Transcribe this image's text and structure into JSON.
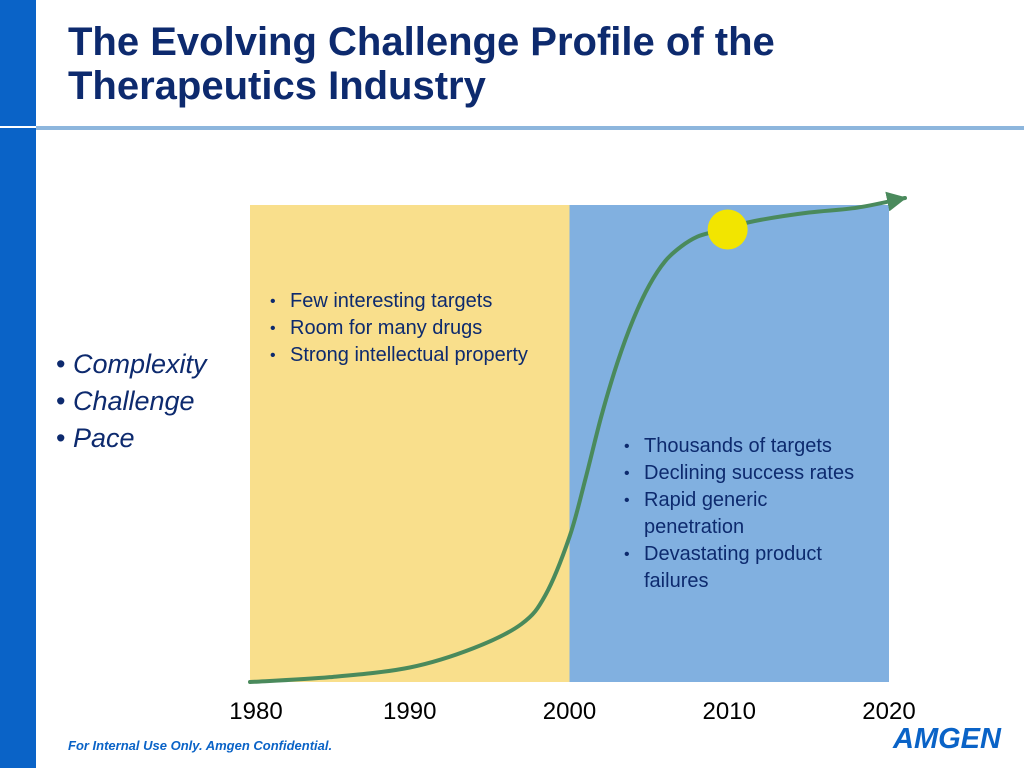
{
  "slide": {
    "title": "The Evolving Challenge Profile of the Therapeutics Industry",
    "keywords": [
      "Complexity",
      "Challenge",
      "Pace"
    ],
    "footer": "For Internal Use Only. Amgen Confidential.",
    "logo_text": "AMGEN"
  },
  "chart_data": {
    "type": "line",
    "title": "",
    "xlabel": "",
    "ylabel": "",
    "x_ticks": [
      1980,
      1990,
      2000,
      2010,
      2020
    ],
    "xlim": [
      1980,
      2020
    ],
    "series": [
      {
        "x": [
          1980,
          1985,
          1990,
          1994,
          1997,
          1998.5,
          2000,
          2001,
          2002,
          2003,
          2004,
          2005,
          2006,
          2007,
          2008,
          2009,
          2010,
          2012,
          2015,
          2018,
          2021
        ],
        "y": [
          0.0,
          0.01,
          0.03,
          0.07,
          0.12,
          0.18,
          0.3,
          0.42,
          0.55,
          0.66,
          0.75,
          0.82,
          0.87,
          0.9,
          0.92,
          0.93,
          0.94,
          0.955,
          0.97,
          0.98,
          1.0
        ],
        "color": "#4a8a5c",
        "arrow_end": true
      }
    ],
    "highlight_point": {
      "x": 2009.9,
      "y": 0.935,
      "color": "#f2e500"
    },
    "regions": [
      {
        "x_start": 1980,
        "x_end": 2000,
        "color": "#f9df8c",
        "bullets": [
          "Few interesting targets",
          "Room for many drugs",
          "Strong intellectual property"
        ]
      },
      {
        "x_start": 2000,
        "x_end": 2020,
        "color": "#81b0e0",
        "bullets": [
          "Thousands of targets",
          "Declining success rates",
          "Rapid generic penetration",
          "Devastating product failures"
        ]
      }
    ]
  }
}
